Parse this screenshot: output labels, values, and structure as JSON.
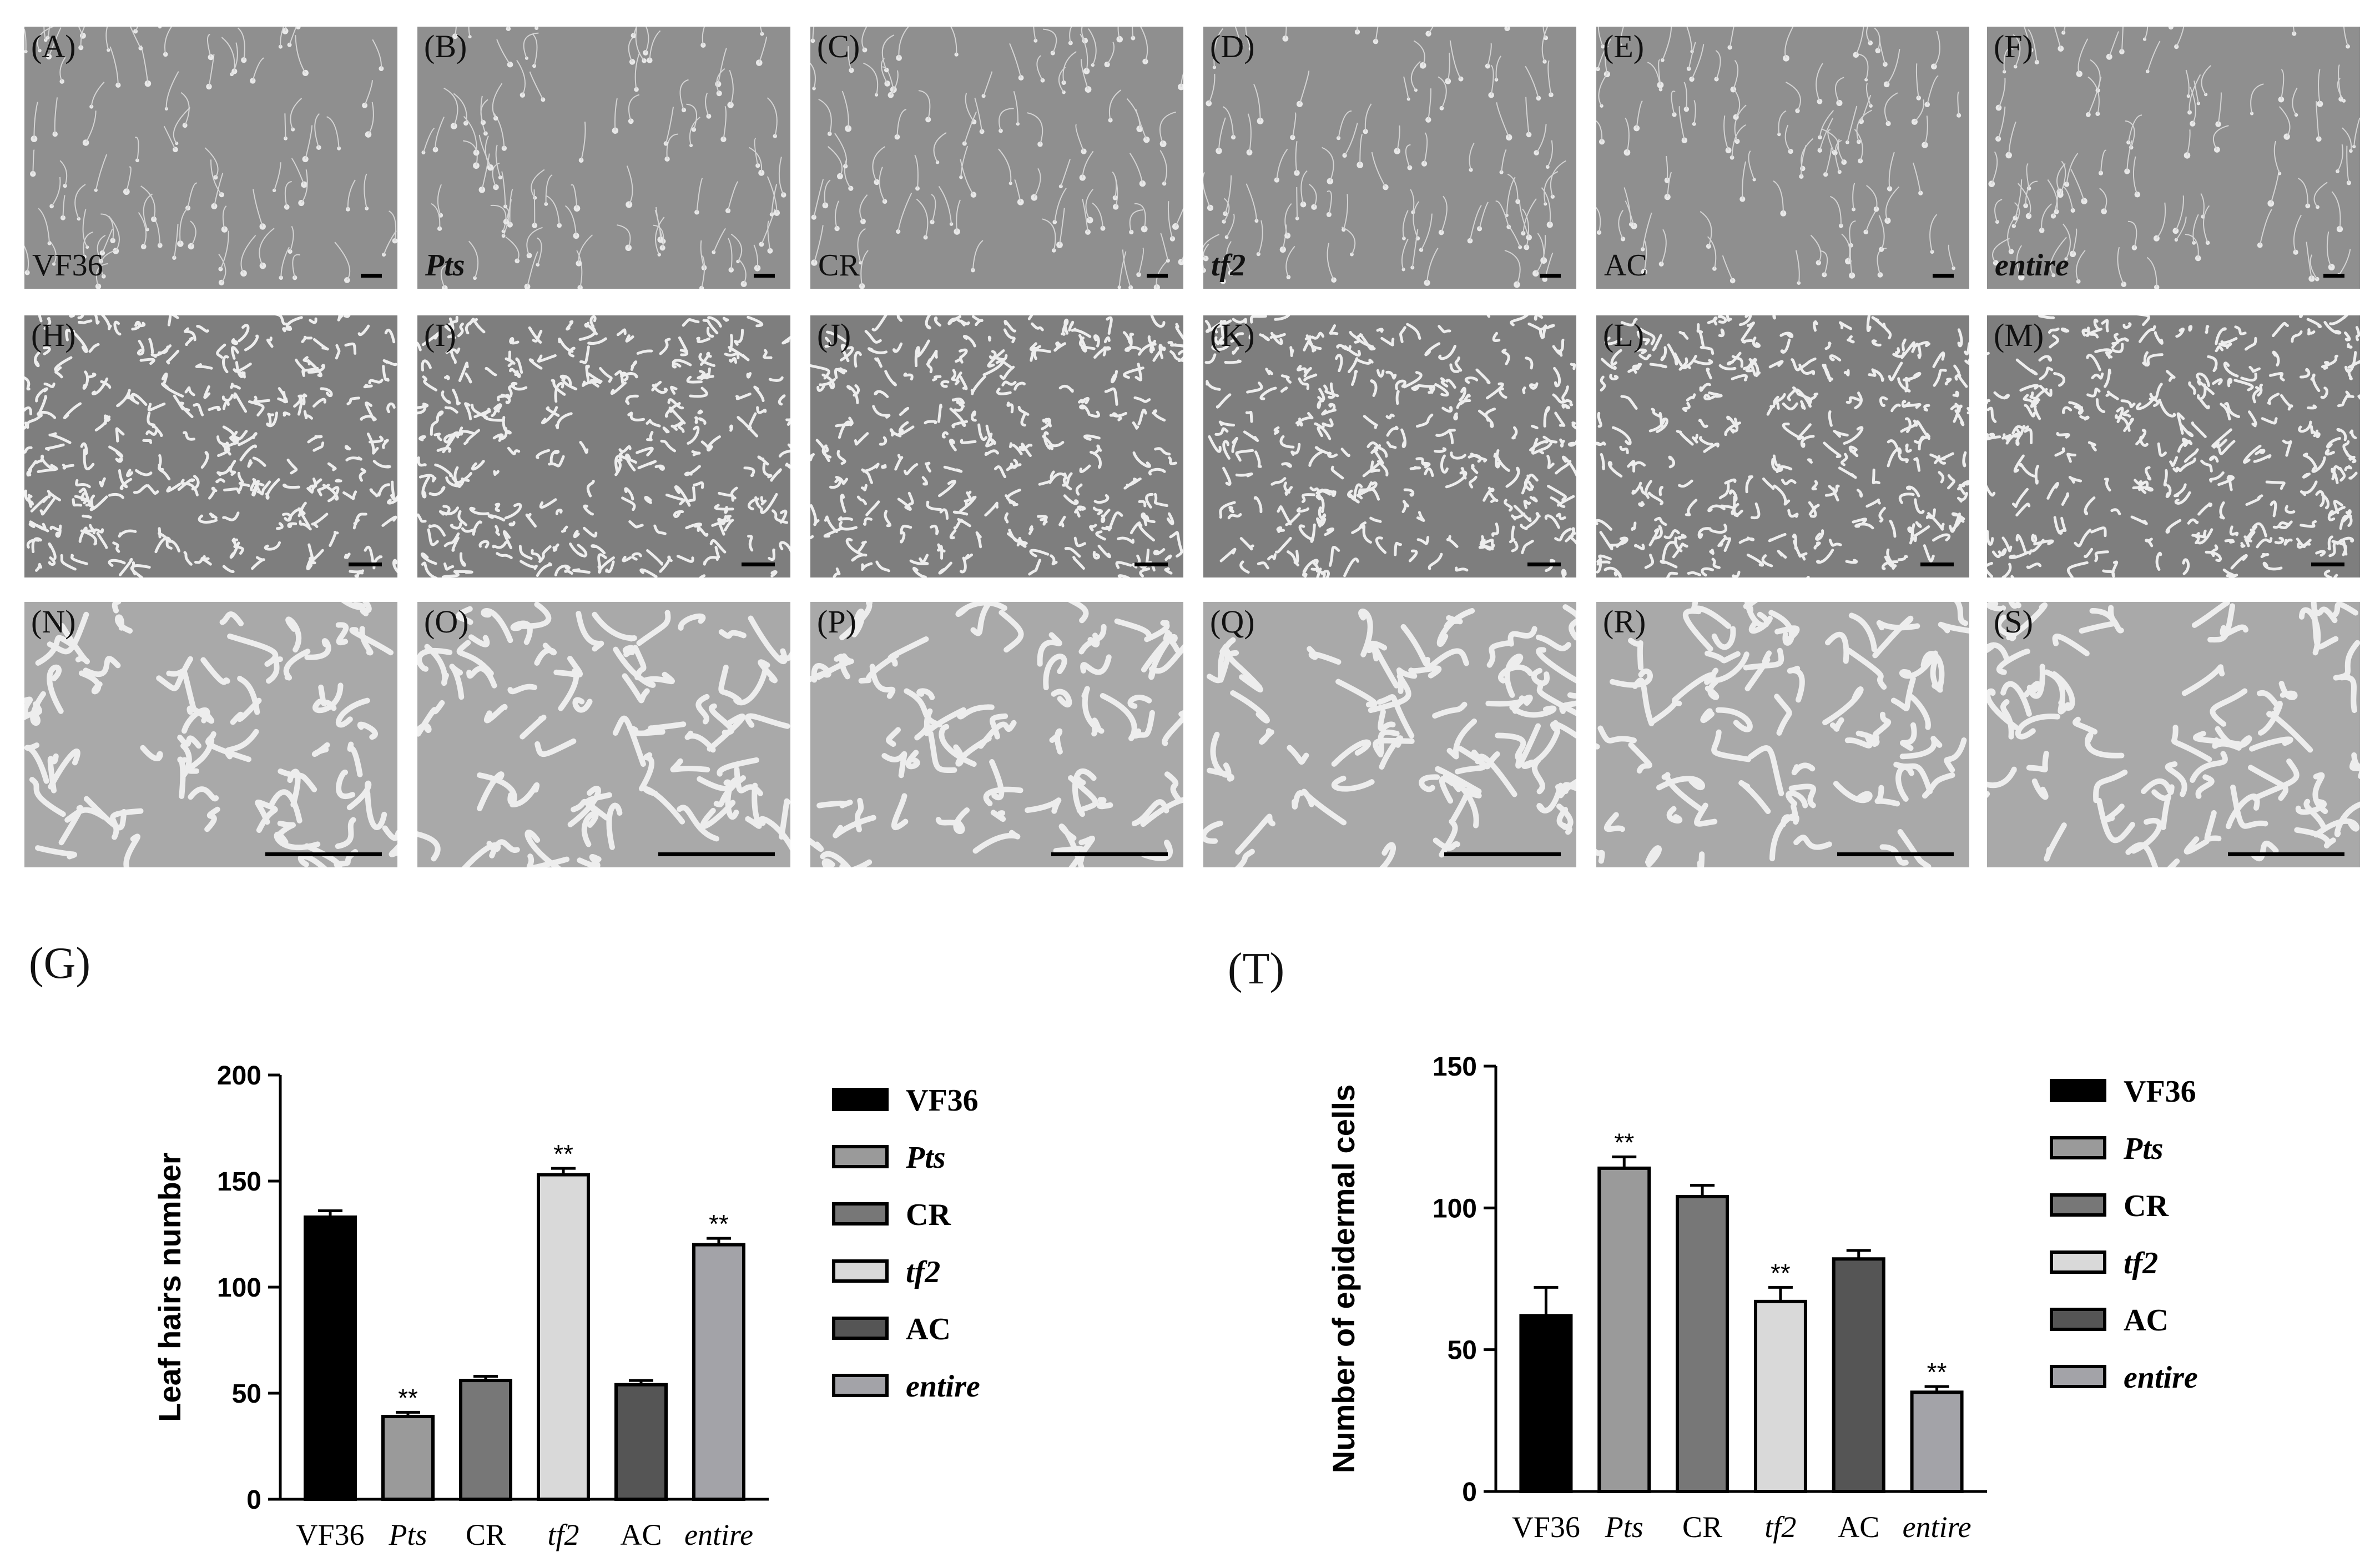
{
  "panels": {
    "row1": [
      {
        "label": "(A)",
        "genotype": "VF36",
        "italic": false
      },
      {
        "label": "(B)",
        "genotype": "Pts",
        "italic": true
      },
      {
        "label": "(C)",
        "genotype": "CR",
        "italic": false
      },
      {
        "label": "(D)",
        "genotype": "tf2",
        "italic": true
      },
      {
        "label": "(E)",
        "genotype": "AC",
        "italic": false
      },
      {
        "label": "(F)",
        "genotype": "entire",
        "italic": true
      }
    ],
    "row2": [
      "(H)",
      "(I)",
      "(J)",
      "(K)",
      "(L)",
      "(M)"
    ],
    "row3": [
      "(N)",
      "(O)",
      "(P)",
      "(Q)",
      "(R)",
      "(S)"
    ]
  },
  "figure_labels": {
    "g": "(G)",
    "t": "(T)"
  },
  "colors": {
    "VF36": "#000000",
    "Pts": "#9a9a9a",
    "CR": "#777777",
    "tf2": "#d9d9d9",
    "AC": "#555555",
    "entire": "#a3a3a8"
  },
  "chart_data": [
    {
      "type": "bar",
      "panel": "(G)",
      "categories": [
        "VF36",
        "Pts",
        "CR",
        "tf2",
        "AC",
        "entire"
      ],
      "italic_categories": [
        "Pts",
        "tf2",
        "entire"
      ],
      "values": [
        133,
        39,
        56,
        153,
        54,
        120
      ],
      "errors": [
        3,
        2,
        2,
        3,
        2,
        3
      ],
      "significance": [
        "",
        "**",
        "",
        "**",
        "",
        "**"
      ],
      "ylabel": "Leaf hairs number",
      "ylim": [
        0,
        200
      ],
      "yticks": [
        0,
        50,
        100,
        150,
        200
      ],
      "legend": [
        "VF36",
        "Pts",
        "CR",
        "tf2",
        "AC",
        "entire"
      ],
      "legend_position": "right"
    },
    {
      "type": "bar",
      "panel": "(T)",
      "categories": [
        "VF36",
        "Pts",
        "CR",
        "tf2",
        "AC",
        "entire"
      ],
      "italic_categories": [
        "Pts",
        "tf2",
        "entire"
      ],
      "values": [
        62,
        114,
        104,
        67,
        82,
        35
      ],
      "errors": [
        10,
        4,
        4,
        5,
        3,
        2
      ],
      "significance": [
        "",
        "**",
        "",
        "**",
        "",
        "**"
      ],
      "ylabel": "Number of epidermal cells",
      "ylim": [
        0,
        150
      ],
      "yticks": [
        0,
        50,
        100,
        150
      ],
      "legend": [
        "VF36",
        "Pts",
        "CR",
        "tf2",
        "AC",
        "entire"
      ],
      "legend_position": "right"
    }
  ]
}
